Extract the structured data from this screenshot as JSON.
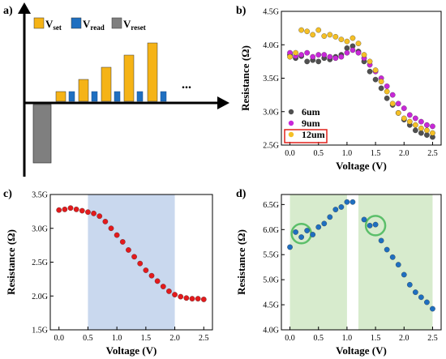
{
  "chart_data": [
    {
      "panel": "a)",
      "type": "bar",
      "legend": [
        {
          "label": "V",
          "sub": "set",
          "color": "#f5b316"
        },
        {
          "label": "V",
          "sub": "read",
          "color": "#1f6fc0"
        },
        {
          "label": "V",
          "sub": "reset",
          "color": "#7f7f7f"
        }
      ],
      "set_values": [
        0.2,
        0.45,
        0.7,
        0.95,
        1.2
      ],
      "read_value": 0.2,
      "reset_value": -1.0,
      "ellipsis": "..."
    },
    {
      "panel": "b)",
      "type": "scatter",
      "xlabel": "Voltage (V)",
      "ylabel": "Resistance (Ω)",
      "xlim": [
        -0.15,
        2.65
      ],
      "ylim": [
        2.5,
        4.5
      ],
      "xticks": [
        "0.0",
        "0.5",
        "1.0",
        "1.5",
        "2.0",
        "2.5"
      ],
      "yticks": [
        "2.5G",
        "3.0G",
        "3.5G",
        "4.0G",
        "4.5G"
      ],
      "x": [
        0.0,
        0.1,
        0.2,
        0.3,
        0.4,
        0.5,
        0.6,
        0.7,
        0.8,
        0.9,
        1.0,
        1.1,
        1.2,
        1.3,
        1.4,
        1.5,
        1.6,
        1.7,
        1.8,
        1.9,
        2.0,
        2.1,
        2.2,
        2.3,
        2.4,
        2.5
      ],
      "series": [
        {
          "name": "6um",
          "color": "#505050",
          "values": [
            3.85,
            3.8,
            3.83,
            3.75,
            3.77,
            3.75,
            3.8,
            3.78,
            3.82,
            3.85,
            3.95,
            3.98,
            3.9,
            3.75,
            3.6,
            3.48,
            3.35,
            3.2,
            3.1,
            2.98,
            2.88,
            2.8,
            2.72,
            2.68,
            2.65,
            2.62
          ]
        },
        {
          "name": "9um",
          "color": "#c828d8",
          "values": [
            3.88,
            3.83,
            3.85,
            3.88,
            3.82,
            3.85,
            3.85,
            3.82,
            3.8,
            3.82,
            3.88,
            3.92,
            3.88,
            3.8,
            3.7,
            3.6,
            3.5,
            3.38,
            3.25,
            3.12,
            3.05,
            2.95,
            2.9,
            2.85,
            2.8,
            2.78
          ]
        },
        {
          "name": "12um",
          "color": "#f5c026",
          "values": [
            3.82,
            3.88,
            4.22,
            4.2,
            4.15,
            4.22,
            4.13,
            4.15,
            4.12,
            4.08,
            4.05,
            4.1,
            4.02,
            3.85,
            3.75,
            3.62,
            3.45,
            3.3,
            3.12,
            2.98,
            2.9,
            2.85,
            2.8,
            2.75,
            2.72,
            2.68
          ]
        }
      ],
      "highlighted_series": "12um"
    },
    {
      "panel": "c)",
      "type": "scatter",
      "xlabel": "Voltage (V)",
      "ylabel": "Resistance (Ω)",
      "xlim": [
        -0.15,
        2.65
      ],
      "ylim": [
        1.5,
        3.5
      ],
      "xticks": [
        "0.0",
        "0.5",
        "1.0",
        "1.5",
        "2.0",
        "2.5"
      ],
      "yticks": [
        "1.5G",
        "2.0G",
        "2.5G",
        "3.0G",
        "3.5G"
      ],
      "shaded_range": [
        0.5,
        2.0
      ],
      "shade_color": "#c9d8ee",
      "x": [
        0.0,
        0.1,
        0.2,
        0.3,
        0.4,
        0.5,
        0.6,
        0.7,
        0.8,
        0.9,
        1.0,
        1.1,
        1.2,
        1.3,
        1.4,
        1.5,
        1.6,
        1.7,
        1.8,
        1.9,
        2.0,
        2.1,
        2.2,
        2.3,
        2.4,
        2.5
      ],
      "series": [
        {
          "color": "#e31a1c",
          "values": [
            3.27,
            3.28,
            3.3,
            3.28,
            3.26,
            3.24,
            3.22,
            3.18,
            3.1,
            3.0,
            2.9,
            2.8,
            2.68,
            2.58,
            2.48,
            2.38,
            2.3,
            2.22,
            2.14,
            2.07,
            2.02,
            1.99,
            1.97,
            1.96,
            1.96,
            1.95
          ]
        }
      ]
    },
    {
      "panel": "d)",
      "type": "scatter",
      "xlabel": "Voltage (V)",
      "ylabel": "Resistance (Ω)",
      "xlim": [
        -0.15,
        2.65
      ],
      "ylim": [
        4.0,
        6.7
      ],
      "xticks": [
        "0.0",
        "0.5",
        "1.0",
        "1.5",
        "2.0",
        "2.5"
      ],
      "yticks": [
        "4.0G",
        "4.5G",
        "5.0G",
        "5.5G",
        "6.0G",
        "6.5G"
      ],
      "shaded_ranges": [
        [
          0.0,
          1.0
        ],
        [
          1.2,
          2.5
        ]
      ],
      "shade_color": "#d7ebcd",
      "circle_color": "#5cbf6a",
      "circles": [
        {
          "x": 0.2,
          "y": 5.92
        },
        {
          "x": 1.5,
          "y": 6.08
        }
      ],
      "series": [
        {
          "color": "#1f6fc0",
          "x": [
            0.0,
            0.1,
            0.2,
            0.3,
            0.4,
            0.5,
            0.6,
            0.7,
            0.8,
            0.9,
            1.0,
            1.1,
            1.3,
            1.4,
            1.5,
            1.6,
            1.7,
            1.8,
            1.9,
            2.0,
            2.1,
            2.2,
            2.3,
            2.4,
            2.5
          ],
          "values": [
            5.65,
            5.95,
            5.85,
            5.98,
            5.9,
            6.05,
            6.12,
            6.25,
            6.4,
            6.45,
            6.55,
            6.55,
            6.2,
            6.08,
            6.1,
            5.78,
            5.6,
            5.45,
            5.3,
            5.1,
            4.9,
            4.75,
            4.65,
            4.55,
            4.42
          ]
        }
      ]
    }
  ]
}
